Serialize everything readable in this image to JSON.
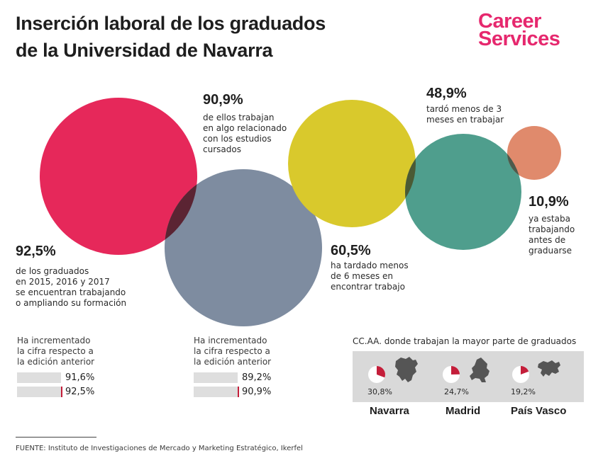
{
  "title": {
    "line1": "Inserción laboral de los graduados",
    "line2": "de la Universidad de Navarra"
  },
  "logo": {
    "line1": "Career",
    "line2": "Services"
  },
  "colors": {
    "pink": "#e6285a",
    "slate": "#7e8ca0",
    "yellow": "#d9c92c",
    "teal": "#4f9e8d",
    "coral": "#e08a6c",
    "logo": "#e6286e",
    "accent_red": "#c41e3a"
  },
  "chart_data": {
    "type": "bubble",
    "title": "Inserción laboral de los graduados de la Universidad de Navarra",
    "bubbles": [
      {
        "id": "trabajando",
        "value": 92.5,
        "unit": "%",
        "label": "92,5%",
        "description": [
          "de los graduados",
          "en 2015, 2016 y 2017",
          "se encuentran trabajando",
          "o ampliando su formación"
        ]
      },
      {
        "id": "relacionado",
        "value": 90.9,
        "unit": "%",
        "label": "90,9%",
        "description": [
          "de ellos trabajan",
          "en algo relacionado",
          "con los estudios",
          "cursados"
        ]
      },
      {
        "id": "seis_meses",
        "value": 60.5,
        "unit": "%",
        "label": "60,5%",
        "description": [
          "ha tardado menos",
          "de 6 meses en",
          "encontrar trabajo"
        ]
      },
      {
        "id": "tres_meses",
        "value": 48.9,
        "unit": "%",
        "label": "48,9%",
        "description": [
          "tardó menos de 3",
          "meses en trabajar"
        ]
      },
      {
        "id": "antes",
        "value": 10.9,
        "unit": "%",
        "label": "10,9%",
        "description": [
          "ya estaba",
          "trabajando",
          "antes de",
          "graduarse"
        ]
      }
    ],
    "comparisons": [
      {
        "label": [
          "Ha incrementado",
          "la cifra respecto a",
          "la edición anterior"
        ],
        "previous": 91.6,
        "current": 92.5,
        "previous_label": "91,6%",
        "current_label": "92,5%"
      },
      {
        "label": [
          "Ha incrementado",
          "la cifra respecto a",
          "la edición anterior"
        ],
        "previous": 89.2,
        "current": 90.9,
        "previous_label": "89,2%",
        "current_label": "90,9%"
      }
    ],
    "regions": {
      "title": "CC.AA. donde trabajan la mayor parte de graduados",
      "items": [
        {
          "name": "Navarra",
          "value": 30.8,
          "label": "30,8%",
          "map_icon": "navarra-map-icon"
        },
        {
          "name": "Madrid",
          "value": 24.7,
          "label": "24,7%",
          "map_icon": "madrid-map-icon"
        },
        {
          "name": "País Vasco",
          "value": 19.2,
          "label": "19,2%",
          "map_icon": "pais-vasco-map-icon"
        }
      ]
    }
  },
  "source": "FUENTE: Instituto de Investigaciones de Mercado y Marketing Estratégico, Ikerfel"
}
